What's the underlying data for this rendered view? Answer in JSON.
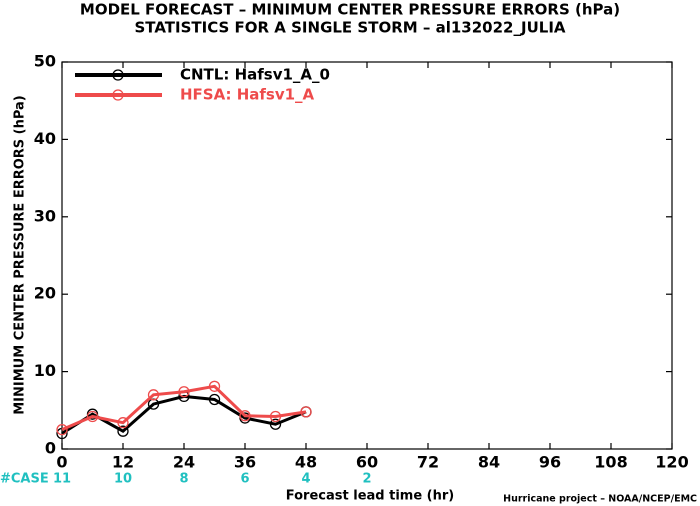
{
  "chart_data": {
    "type": "line",
    "title": "MODEL FORECAST – MINIMUM CENTER PRESSURE ERRORS (hPa)",
    "subtitle": "STATISTICS FOR A SINGLE STORM – al132022_JULIA",
    "x_label": "Forecast lead time (hr)",
    "y_label": "MINIMUM CENTER PRESSURE ERRORS (hPa)",
    "footer": "Hurricane project – NOAA/NCEP/EMC",
    "x": [
      0,
      6,
      12,
      18,
      24,
      30,
      36,
      42,
      48
    ],
    "series": [
      {
        "name": "CNTL: Hafsv1_A_0",
        "color": "#000000",
        "values": [
          2.0,
          4.5,
          2.3,
          5.8,
          6.8,
          6.4,
          4.0,
          3.2,
          4.8
        ]
      },
      {
        "name": "HFSA: Hafsv1_A",
        "color": "#ee4b4b",
        "values": [
          2.5,
          4.2,
          3.4,
          7.0,
          7.4,
          8.1,
          4.3,
          4.2,
          4.8
        ]
      }
    ],
    "case_label": "#CASE",
    "case_counts": [
      11,
      10,
      8,
      6,
      4,
      2
    ],
    "xlim": [
      0,
      120
    ],
    "xticks": [
      0,
      12,
      24,
      36,
      48,
      60,
      72,
      84,
      96,
      108,
      120
    ],
    "ylim": [
      0,
      50
    ],
    "yticks": [
      0,
      10,
      20,
      30,
      40,
      50
    ],
    "grid": false,
    "legend": "upper left"
  }
}
